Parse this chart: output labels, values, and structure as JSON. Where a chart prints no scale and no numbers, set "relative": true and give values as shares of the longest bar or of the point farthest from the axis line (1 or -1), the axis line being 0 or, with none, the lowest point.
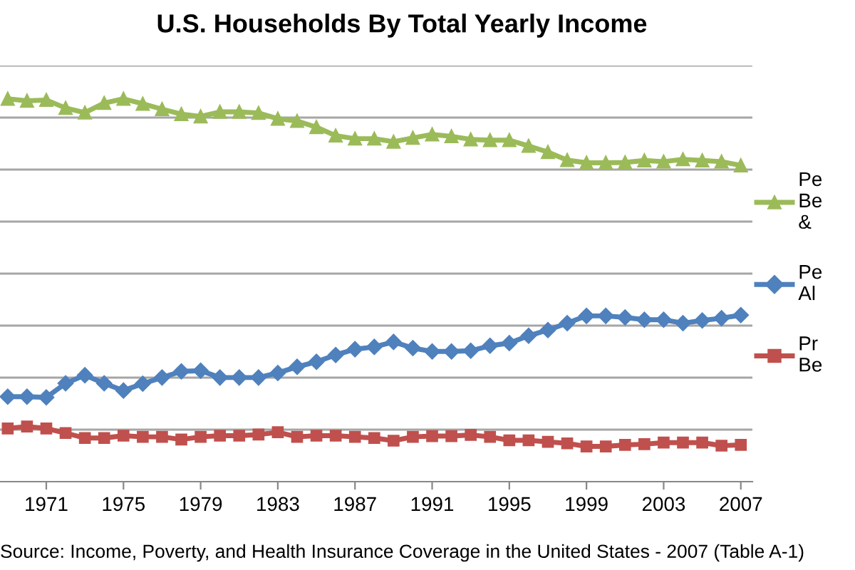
{
  "chart_data": {
    "type": "line",
    "title": "U.S. Households By Total Yearly Income",
    "relative": true,
    "x": [
      1969,
      1970,
      1971,
      1972,
      1973,
      1974,
      1975,
      1976,
      1977,
      1978,
      1979,
      1980,
      1981,
      1982,
      1983,
      1984,
      1985,
      1986,
      1987,
      1988,
      1989,
      1990,
      1991,
      1992,
      1993,
      1994,
      1995,
      1996,
      1997,
      1998,
      1999,
      2000,
      2001,
      2002,
      2003,
      2004,
      2005,
      2006,
      2007
    ],
    "xlim": [
      1968.6,
      2007.6
    ],
    "xticks": [
      1971,
      1975,
      1979,
      1983,
      1987,
      1991,
      1995,
      1999,
      2003,
      2007
    ],
    "series": [
      {
        "name": "Pe\nBe\n&",
        "color": "#9bbb59",
        "marker": "triangle",
        "values": [
          1.0,
          0.995,
          0.997,
          0.976,
          0.964,
          0.989,
          1.0,
          0.987,
          0.973,
          0.96,
          0.954,
          0.966,
          0.966,
          0.963,
          0.948,
          0.942,
          0.926,
          0.904,
          0.896,
          0.896,
          0.888,
          0.898,
          0.907,
          0.902,
          0.894,
          0.892,
          0.892,
          0.877,
          0.861,
          0.84,
          0.833,
          0.833,
          0.834,
          0.839,
          0.836,
          0.842,
          0.839,
          0.836,
          0.826
        ]
      },
      {
        "name": "Pe\nAl",
        "color": "#4f81bd",
        "marker": "diamond",
        "values": [
          0.222,
          0.222,
          0.22,
          0.257,
          0.278,
          0.257,
          0.238,
          0.256,
          0.272,
          0.288,
          0.29,
          0.272,
          0.272,
          0.272,
          0.284,
          0.3,
          0.313,
          0.331,
          0.346,
          0.352,
          0.365,
          0.349,
          0.34,
          0.34,
          0.342,
          0.355,
          0.362,
          0.381,
          0.396,
          0.414,
          0.433,
          0.433,
          0.429,
          0.423,
          0.423,
          0.414,
          0.421,
          0.427,
          0.435
        ]
      },
      {
        "name": "Pr\nBe",
        "color": "#c0504d",
        "marker": "square",
        "values": [
          0.139,
          0.144,
          0.139,
          0.127,
          0.114,
          0.114,
          0.12,
          0.117,
          0.117,
          0.11,
          0.117,
          0.12,
          0.12,
          0.123,
          0.129,
          0.117,
          0.12,
          0.12,
          0.117,
          0.114,
          0.107,
          0.117,
          0.119,
          0.119,
          0.122,
          0.117,
          0.108,
          0.108,
          0.104,
          0.1,
          0.092,
          0.092,
          0.096,
          0.098,
          0.102,
          0.102,
          0.102,
          0.094,
          0.096
        ]
      }
    ],
    "grid": "y",
    "legend": "right",
    "line_style": "solid",
    "annotations": [
      "Source: Income, Poverty, and Health Insurance Coverage in the United States - 2007 (Table A-1)"
    ]
  }
}
